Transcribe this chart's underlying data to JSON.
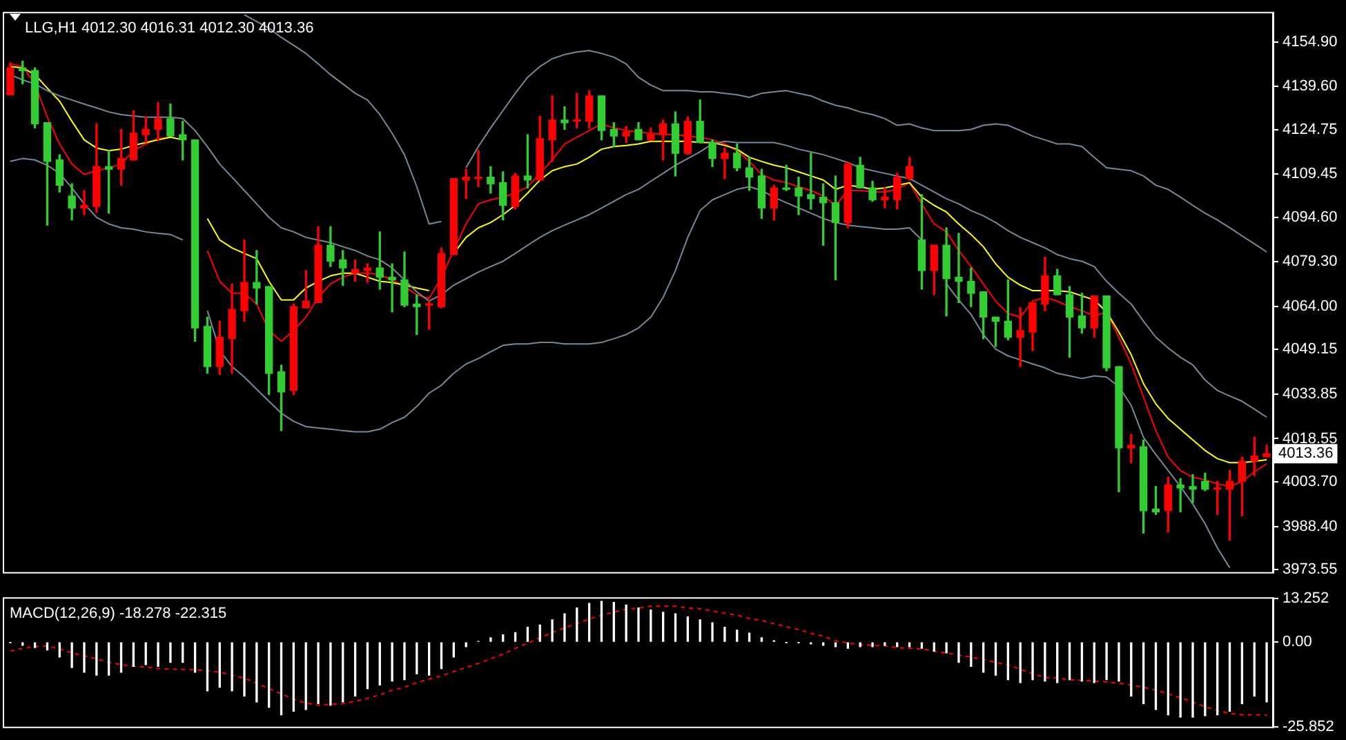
{
  "chart_data": [
    {
      "type": "candlestick",
      "title": "LLG,H1 4012.30 4016.31 4012.30 4013.36",
      "tick_labels": "y",
      "marker": "none",
      "categories": [
        null,
        null,
        null,
        null,
        null,
        null,
        null,
        null,
        null,
        null,
        null,
        null,
        null,
        null,
        null,
        null,
        null,
        null,
        null,
        null,
        null,
        null,
        null,
        null,
        null,
        null,
        null,
        null,
        null,
        null,
        null,
        null,
        null,
        null,
        null,
        null,
        null,
        null,
        null,
        null,
        null,
        null,
        null,
        null,
        null,
        null,
        null,
        null,
        null,
        null,
        null,
        null,
        null,
        null,
        null,
        null,
        null,
        null,
        null,
        null,
        null,
        null,
        null,
        null,
        null,
        null,
        null,
        null,
        null,
        null,
        null,
        null,
        null,
        null,
        null,
        null,
        null,
        null,
        null,
        null,
        null,
        null,
        null,
        null,
        null,
        null,
        null,
        null,
        null,
        null,
        null,
        null,
        null,
        null,
        null,
        null,
        null,
        null,
        null,
        null,
        null,
        null,
        null
      ],
      "ohlc": [
        [
          4136.7,
          4147.7,
          4136.7,
          4145.9
        ],
        [
          4145.9,
          4148.2,
          4140.4,
          4145.0
        ],
        [
          4145.0,
          4145.9,
          4125.3,
          4126.7
        ],
        [
          4127.1,
          4127.1,
          4091.9,
          4113.8
        ],
        [
          4114.3,
          4116.1,
          4103.3,
          4105.6
        ],
        [
          4101.9,
          4106.1,
          4093.7,
          4097.8
        ],
        [
          4097.8,
          4103.8,
          4095.5,
          4098.7
        ],
        [
          4098.3,
          4126.7,
          4096.4,
          4112.0
        ],
        [
          4112.0,
          4117.5,
          4096.0,
          4111.1
        ],
        [
          4111.1,
          4124.8,
          4105.6,
          4114.8
        ],
        [
          4114.3,
          4131.3,
          4114.3,
          4123.5
        ],
        [
          4123.0,
          4129.0,
          4120.3,
          4124.8
        ],
        [
          4124.8,
          4134.0,
          4121.2,
          4128.5
        ],
        [
          4128.5,
          4133.5,
          4122.5,
          4122.5
        ],
        [
          4123.0,
          4127.6,
          4114.3,
          4121.2
        ],
        [
          4121.2,
          4121.2,
          4052.0,
          4056.6
        ],
        [
          4057.1,
          4060.3,
          4041.0,
          4043.3
        ],
        [
          4043.3,
          4058.9,
          4040.6,
          4053.4
        ],
        [
          4052.9,
          4071.7,
          4041.0,
          4063.0
        ],
        [
          4062.5,
          4086.8,
          4058.9,
          4072.2
        ],
        [
          4072.2,
          4083.2,
          4064.8,
          4070.3
        ],
        [
          4070.8,
          4070.8,
          4033.7,
          4041.0
        ],
        [
          4041.5,
          4043.8,
          4021.3,
          4034.6
        ],
        [
          4035.1,
          4064.8,
          4033.7,
          4063.9
        ],
        [
          4063.5,
          4076.3,
          4063.5,
          4065.8
        ],
        [
          4065.3,
          4091.4,
          4065.3,
          4085.0
        ],
        [
          4085.0,
          4091.4,
          4077.7,
          4079.5
        ],
        [
          4080.0,
          4083.2,
          4071.2,
          4077.2
        ],
        [
          4075.4,
          4080.0,
          4072.6,
          4076.7
        ],
        [
          4076.3,
          4078.6,
          4072.2,
          4077.2
        ],
        [
          4077.2,
          4089.6,
          4069.9,
          4074.0
        ],
        [
          4074.0,
          4078.6,
          4062.1,
          4073.1
        ],
        [
          4073.1,
          4082.7,
          4063.9,
          4064.4
        ],
        [
          4064.8,
          4068.0,
          4054.3,
          4063.9
        ],
        [
          4064.4,
          4065.8,
          4056.1,
          4064.8
        ],
        [
          4063.9,
          4084.1,
          4063.5,
          4082.2
        ],
        [
          4081.8,
          4107.9,
          4081.8,
          4107.9
        ],
        [
          4107.4,
          4111.1,
          4101.0,
          4108.4
        ],
        [
          4107.9,
          4117.5,
          4105.1,
          4108.4
        ],
        [
          4108.4,
          4112.0,
          4102.9,
          4106.1
        ],
        [
          4106.5,
          4110.2,
          4093.7,
          4098.7
        ],
        [
          4098.3,
          4109.7,
          4097.4,
          4108.8
        ],
        [
          4108.8,
          4123.0,
          4104.7,
          4107.4
        ],
        [
          4107.4,
          4129.4,
          4107.4,
          4121.6
        ],
        [
          4121.2,
          4136.3,
          4113.8,
          4128.0
        ],
        [
          4128.0,
          4132.6,
          4124.8,
          4127.1
        ],
        [
          4127.6,
          4137.2,
          4125.3,
          4128.0
        ],
        [
          4127.6,
          4138.1,
          4125.3,
          4136.3
        ],
        [
          4136.3,
          4136.3,
          4121.2,
          4124.4
        ],
        [
          4124.8,
          4127.1,
          4118.9,
          4122.5
        ],
        [
          4122.5,
          4125.8,
          4120.3,
          4123.9
        ],
        [
          4124.8,
          4127.1,
          4121.2,
          4121.2
        ],
        [
          4121.2,
          4125.3,
          4121.2,
          4123.0
        ],
        [
          4123.0,
          4128.0,
          4114.3,
          4126.7
        ],
        [
          4126.7,
          4130.8,
          4108.8,
          4116.6
        ],
        [
          4116.6,
          4129.0,
          4116.1,
          4127.6
        ],
        [
          4127.6,
          4134.9,
          4120.3,
          4120.3
        ],
        [
          4120.3,
          4121.2,
          4112.0,
          4114.8
        ],
        [
          4114.8,
          4118.4,
          4107.9,
          4116.6
        ],
        [
          4116.6,
          4119.8,
          4110.6,
          4111.6
        ],
        [
          4111.6,
          4115.2,
          4103.8,
          4108.4
        ],
        [
          4108.8,
          4111.1,
          4094.2,
          4097.8
        ],
        [
          4097.8,
          4105.6,
          4093.7,
          4104.7
        ],
        [
          4104.7,
          4112.5,
          4103.8,
          4104.2
        ],
        [
          4104.7,
          4108.4,
          4095.5,
          4101.9
        ],
        [
          4102.4,
          4116.6,
          4097.4,
          4101.0
        ],
        [
          4101.5,
          4106.1,
          4085.0,
          4099.6
        ],
        [
          4099.6,
          4108.8,
          4073.1,
          4092.8
        ],
        [
          4092.8,
          4113.4,
          4091.0,
          4112.9
        ],
        [
          4112.5,
          4115.2,
          4104.7,
          4104.7
        ],
        [
          4104.7,
          4107.0,
          4100.1,
          4100.6
        ],
        [
          4100.6,
          4104.7,
          4097.8,
          4101.5
        ],
        [
          4100.6,
          4109.7,
          4097.4,
          4108.4
        ],
        [
          4107.9,
          4115.2,
          4107.4,
          4112.0
        ],
        [
          4086.8,
          4102.4,
          4069.9,
          4076.3
        ],
        [
          4076.3,
          4085.0,
          4068.0,
          4085.0
        ],
        [
          4085.0,
          4091.0,
          4060.7,
          4073.5
        ],
        [
          4074.0,
          4089.1,
          4065.3,
          4072.6
        ],
        [
          4072.6,
          4077.2,
          4063.9,
          4068.5
        ],
        [
          4069.0,
          4069.0,
          4052.9,
          4060.3
        ],
        [
          4060.3,
          4060.3,
          4050.2,
          4058.9
        ],
        [
          4058.9,
          4073.1,
          4052.5,
          4053.4
        ],
        [
          4053.4,
          4063.5,
          4043.3,
          4055.7
        ],
        [
          4055.2,
          4065.3,
          4048.8,
          4065.3
        ],
        [
          4064.8,
          4080.9,
          4062.5,
          4074.5
        ],
        [
          4074.5,
          4076.7,
          4068.0,
          4068.0
        ],
        [
          4068.0,
          4070.8,
          4046.5,
          4060.3
        ],
        [
          4060.7,
          4068.5,
          4054.8,
          4056.6
        ],
        [
          4056.6,
          4067.6,
          4053.4,
          4067.6
        ],
        [
          4067.6,
          4067.6,
          4041.9,
          4042.9
        ],
        [
          4043.3,
          4043.3,
          4000.3,
          4015.4
        ],
        [
          4015.4,
          4020.0,
          4010.3,
          4016.3
        ],
        [
          4015.8,
          4018.1,
          3986.1,
          3993.8
        ],
        [
          3994.3,
          4002.1,
          3992.5,
          3993.4
        ],
        [
          3993.8,
          4005.3,
          3986.5,
          4002.6
        ],
        [
          4002.6,
          4004.8,
          3993.4,
          4001.6
        ],
        [
          4002.1,
          4006.2,
          3996.6,
          4001.2
        ],
        [
          4003.9,
          4006.7,
          4000.7,
          4001.2
        ],
        [
          4001.2,
          4003.9,
          3992.5,
          4001.6
        ],
        [
          4001.2,
          4007.6,
          3983.8,
          4003.9
        ],
        [
          4003.9,
          4012.2,
          3992.0,
          4010.8
        ],
        [
          4010.8,
          4019.0,
          4005.8,
          4012.6
        ],
        [
          4012.3,
          4016.31,
          4012.3,
          4013.36
        ]
      ],
      "colors": [
        "#ff0000",
        "#32cd32",
        "#32cd32",
        "#32cd32",
        "#32cd32",
        "#32cd32",
        "#ff0000",
        "#ff0000",
        "#32cd32",
        "#ff0000",
        "#ff0000",
        "#ff0000",
        "#ff0000",
        "#32cd32",
        "#32cd32",
        "#32cd32",
        "#32cd32",
        "#ff0000",
        "#ff0000",
        "#ff0000",
        "#32cd32",
        "#32cd32",
        "#32cd32",
        "#ff0000",
        "#ff0000",
        "#ff0000",
        "#32cd32",
        "#32cd32",
        "#ff0000",
        "#ff0000",
        "#32cd32",
        "#32cd32",
        "#32cd32",
        "#32cd32",
        "#ff0000",
        "#ff0000",
        "#ff0000",
        "#ff0000",
        "#ff0000",
        "#32cd32",
        "#32cd32",
        "#ff0000",
        "#32cd32",
        "#ff0000",
        "#ff0000",
        "#32cd32",
        "#ff0000",
        "#ff0000",
        "#32cd32",
        "#32cd32",
        "#ff0000",
        "#32cd32",
        "#ff0000",
        "#ff0000",
        "#32cd32",
        "#ff0000",
        "#32cd32",
        "#32cd32",
        "#ff0000",
        "#32cd32",
        "#32cd32",
        "#32cd32",
        "#ff0000",
        "#32cd32",
        "#32cd32",
        "#32cd32",
        "#32cd32",
        "#32cd32",
        "#ff0000",
        "#32cd32",
        "#32cd32",
        "#ff0000",
        "#ff0000",
        "#ff0000",
        "#32cd32",
        "#ff0000",
        "#32cd32",
        "#32cd32",
        "#32cd32",
        "#32cd32",
        "#32cd32",
        "#32cd32",
        "#ff0000",
        "#ff0000",
        "#ff0000",
        "#32cd32",
        "#32cd32",
        "#32cd32",
        "#ff0000",
        "#32cd32",
        "#32cd32",
        "#ff0000",
        "#32cd32",
        "#32cd32",
        "#ff0000",
        "#32cd32",
        "#32cd32",
        "#32cd32",
        "#ff0000",
        "#ff0000",
        "#ff0000",
        "#ff0000",
        "#ff0000"
      ],
      "series": [
        {
          "type": "line",
          "color": "#778899",
          "values": [
            null,
            null,
            null,
            null,
            null,
            null,
            null,
            null,
            null,
            null,
            null,
            null,
            null,
            null,
            null,
            null,
            null,
            null,
            null,
            4164.2,
            4161.9,
            4159.6,
            4156.4,
            4153.7,
            4150.9,
            4147.3,
            4143.6,
            4140.4,
            4137.2,
            4134.9,
            4129.9,
            4123.5,
            4116.1,
            4105.1,
            4092.3,
            4093.2,
            null,
            4111.6,
            4118.9,
            4125.3,
            4131.3,
            4137.2,
            4142.7,
            4146.4,
            4149.1,
            4150.5,
            4151.4,
            4151.9,
            4150.9,
            4149.6,
            4147.3,
            4142.7,
            4140.0,
            4138.1,
            4138.1,
            4138.1,
            4137.7,
            4137.7,
            4137.2,
            4136.7,
            4135.8,
            4137.2,
            4137.7,
            4138.1,
            4137.2,
            4136.3,
            4134.5,
            4133.1,
            4132.2,
            4130.8,
            4129.9,
            4128.5,
            4126.2,
            4126.7,
            4125.3,
            4124.4,
            4124.4,
            4124.4,
            4124.8,
            4126.2,
            4126.7,
            4126.2,
            4124.4,
            4122.5,
            4121.2,
            4119.8,
            4119.8,
            4118.9,
            4115.2,
            4111.6,
            4111.1,
            4110.6,
            4108.8,
            4105.6,
            4104.2,
            4101.5,
            4098.7,
            4096.0,
            4093.7,
            4091.0,
            4088.2,
            4085.5,
            4082.7
          ]
        },
        {
          "type": "line",
          "color": "#778899",
          "values": [
            4143.6,
            4141.8,
            4140.4,
            4138.1,
            4136.3,
            4134.9,
            4133.5,
            4132.2,
            4130.8,
            4129.9,
            4129.4,
            4129.0,
            4129.0,
            4129.0,
            4128.5,
            4124.4,
            4118.9,
            4112.9,
            4108.4,
            4103.8,
            4099.2,
            4094.6,
            4091.0,
            4089.6,
            4087.7,
            4086.8,
            4085.9,
            4084.5,
            4083.2,
            4081.3,
            4080.0,
            4077.2,
            4073.1,
            4069.0,
            4065.8,
            4068.0,
            4071.3,
            4073.5,
            4075.8,
            4077.7,
            4079.5,
            4082.2,
            4085.0,
            4087.7,
            4090.0,
            4091.9,
            4093.7,
            4095.5,
            4097.8,
            4100.1,
            4102.4,
            4104.2,
            4107.0,
            4109.7,
            4112.5,
            4114.8,
            4117.1,
            4119.8,
            4120.7,
            4120.3,
            4120.3,
            4120.3,
            4120.3,
            4119.3,
            4118.0,
            4117.1,
            4116.1,
            4114.8,
            4113.4,
            4111.6,
            4110.6,
            4109.7,
            4108.8,
            4107.9,
            4105.6,
            4103.3,
            4101.0,
            4099.2,
            4096.9,
            4095.1,
            4092.8,
            4090.0,
            4087.7,
            4085.9,
            4084.1,
            4081.8,
            4080.4,
            4079.5,
            4077.7,
            4072.6,
            4068.5,
            4064.8,
            4058.9,
            4053.4,
            4049.7,
            4046.5,
            4043.9,
            4038.7,
            4035.1,
            4033.2,
            4031.4,
            4028.7,
            4025.9
          ]
        },
        {
          "type": "line",
          "color": "#778899",
          "values": [
            4113.8,
            4114.8,
            4114.3,
            4112.5,
            4109.7,
            4104.7,
            4099.2,
            4094.6,
            4092.3,
            4091.0,
            4090.5,
            4089.6,
            4089.1,
            4088.7,
            4086.8,
            null,
            4062.5,
            4048.8,
            4043.3,
            4039.7,
            4035.5,
            4031.4,
            4027.3,
            4024.5,
            4022.7,
            4022.2,
            4021.8,
            4021.3,
            4020.9,
            4020.9,
            4021.8,
            4024.1,
            4025.9,
            4029.6,
            4034.2,
            4036.9,
            4041.0,
            4044.2,
            4046.1,
            4048.4,
            4050.6,
            4051.1,
            4051.1,
            4051.6,
            4051.6,
            4051.1,
            4051.1,
            4051.1,
            4051.6,
            4052.9,
            4054.3,
            4056.6,
            4060.3,
            4067.1,
            4076.3,
            4087.7,
            4096.9,
            4100.6,
            4102.4,
            4104.2,
            4105.1,
            4103.8,
            4101.5,
            4099.6,
            4097.8,
            4096.0,
            4094.2,
            4092.8,
            4091.9,
            4091.4,
            4091.0,
            4090.5,
            4090.5,
            4091.0,
            4086.8,
            null,
            4071.7,
            4066.2,
            4061.2,
            4054.3,
            4049.3,
            4047.0,
            4045.6,
            4044.2,
            4042.9,
            4041.0,
            4040.1,
            4039.2,
            4040.1,
            4039.7,
            4036.4,
            4030.0,
            4019.0,
            4013.1,
            4007.6,
            4002.1,
            3996.1,
            3989.3,
            3981.0,
            3974.2,
            null,
            null,
            null
          ]
        },
        {
          "type": "line",
          "color": "#ffff00",
          "values": [
            4146.4,
            4145.9,
            4143.6,
            4139.0,
            4134.5,
            4127.6,
            4121.2,
            4118.4,
            4117.5,
            4118.0,
            4119.3,
            4120.3,
            4121.2,
            4122.1,
            4121.2,
            null,
            4094.2,
            4086.8,
            4084.1,
            4082.2,
            4080.4,
            4072.6,
            4066.2,
            4066.2,
            4070.3,
            4072.6,
            4074.5,
            4075.4,
            4075.4,
            4074.0,
            4072.6,
            4072.2,
            4071.3,
            4070.3,
            4069.4,
            null,
            4082.2,
            4087.7,
            4091.0,
            4092.8,
            4095.5,
            4098.7,
            4102.9,
            4107.4,
            4110.6,
            4112.0,
            4112.9,
            4115.2,
            4118.0,
            4118.9,
            4119.3,
            4119.8,
            4120.7,
            4120.7,
            4120.7,
            4120.7,
            4120.3,
            4120.3,
            4119.3,
            4118.0,
            4115.2,
            4113.8,
            4112.5,
            4111.6,
            4110.2,
            4108.8,
            4107.4,
            4104.2,
            4105.6,
            4105.1,
            4104.2,
            4104.7,
            4105.6,
            4106.5,
            4101.5,
            4098.7,
            4096.4,
            4092.3,
            4088.7,
            4084.5,
            4078.6,
            4074.0,
            4071.3,
            4069.4,
            4069.4,
            4069.4,
            4069.0,
            4067.6,
            4066.2,
            4062.1,
            4055.2,
            4047.4,
            4037.4,
            4030.5,
            4025.5,
            4021.8,
            4018.1,
            4014.5,
            4011.7,
            4010.3,
            4010.3,
            4010.8,
            4011.3
          ]
        },
        {
          "type": "line",
          "color": "#ff0000",
          "values": [
            4147.3,
            4146.4,
            4140.4,
            4129.0,
            4119.8,
            4112.9,
            4109.3,
            4110.6,
            4111.6,
            4112.9,
            4117.5,
            4119.8,
            4121.6,
            4122.1,
            null,
            null,
            4083.2,
            4072.6,
            4068.5,
            4068.5,
            4064.8,
            4055.7,
            4052.0,
            4055.7,
            4060.3,
            4067.1,
            4071.7,
            4074.0,
            4075.4,
            4075.4,
            4074.9,
            4073.1,
            4070.8,
            4068.0,
            4066.7,
            4074.0,
            4083.2,
            4092.3,
            4099.2,
            4100.6,
            4101.5,
            4102.9,
            4105.1,
            4109.7,
            4114.3,
            4119.8,
            4122.1,
            4124.4,
            4126.7,
            4125.3,
            4124.4,
            4123.9,
            4123.5,
            4123.0,
            4123.0,
            4122.5,
            4122.1,
            4121.2,
            4119.8,
            4117.5,
            4113.8,
            4109.3,
            4107.4,
            4106.5,
            4105.1,
            4103.8,
            4101.9,
            4098.7,
            4103.8,
            4103.8,
            4103.3,
            4103.3,
            4104.2,
            4106.5,
            4099.2,
            4092.3,
            4089.6,
            4083.2,
            4077.7,
            4071.7,
            4065.8,
            4061.6,
            4060.3,
            4065.8,
            4067.1,
            4065.8,
            4063.9,
            4062.5,
            4060.7,
            4062.1,
            4053.4,
            4044.2,
            4032.8,
            4021.3,
            4012.2,
            4007.6,
            4005.3,
            4004.4,
            4003.0,
            4002.1,
            4003.9,
            4007.1,
            4009.9
          ]
        }
      ],
      "ylim": [
        3972.7,
        4164.7
      ],
      "yticks": [
        {
          "value": 3973.55,
          "label": "3973.55"
        },
        {
          "value": 3988.4,
          "label": "3988.40"
        },
        {
          "value": 4003.7,
          "label": "4003.70"
        },
        {
          "value": 4018.55,
          "label": "4018.55"
        },
        {
          "value": 4033.85,
          "label": "4033.85"
        },
        {
          "value": 4049.15,
          "label": "4049.15"
        },
        {
          "value": 4064.0,
          "label": "4064.00"
        },
        {
          "value": 4079.3,
          "label": "4079.30"
        },
        {
          "value": 4094.6,
          "label": "4094.60"
        },
        {
          "value": 4109.45,
          "label": "4109.45"
        },
        {
          "value": 4124.75,
          "label": "4124.75"
        },
        {
          "value": 4139.6,
          "label": "4139.60"
        },
        {
          "value": 4154.9,
          "label": "4154.90"
        }
      ],
      "annotations": [
        "4013.36"
      ]
    },
    {
      "type": "bar",
      "title": "MACD(12,26,9) -18.278 -22.315",
      "tick_labels": "y",
      "marker": "none",
      "categories": [
        null,
        null,
        null,
        null,
        null,
        null,
        null,
        null,
        null,
        null,
        null,
        null,
        null,
        null,
        null,
        null,
        null,
        null,
        null,
        null,
        null,
        null,
        null,
        null,
        null,
        null,
        null,
        null,
        null,
        null,
        null,
        null,
        null,
        null,
        null,
        null,
        null,
        null,
        null,
        null,
        null,
        null,
        null,
        null,
        null,
        null,
        null,
        null,
        null,
        null,
        null,
        null,
        null,
        null,
        null,
        null,
        null,
        null,
        null,
        null,
        null,
        null,
        null,
        null,
        null,
        null,
        null,
        null,
        null,
        null,
        null,
        null,
        null,
        null,
        null,
        null,
        null,
        null,
        null,
        null,
        null,
        null,
        null,
        null,
        null,
        null,
        null,
        null,
        null,
        null,
        null,
        null,
        null,
        null,
        null,
        null,
        null,
        null,
        null,
        null,
        null,
        null,
        null
      ],
      "series": [
        {
          "color": "#ffffff",
          "values": [
            -0.1,
            -1.0,
            -1.7,
            -2.4,
            -4.6,
            -7.8,
            -9.2,
            -10.1,
            -10.1,
            -9.2,
            -7.4,
            -6.9,
            -7.4,
            -6.2,
            -6.2,
            -9.2,
            -14.9,
            -13.8,
            -14.9,
            -16.5,
            -18.3,
            -19.9,
            -22.2,
            -21.1,
            -20.6,
            -18.8,
            -19.3,
            -18.3,
            -16.5,
            -14.2,
            -13.1,
            -11.9,
            -11.5,
            -9.7,
            -10.1,
            -8.1,
            -4.6,
            -1.4,
            0.2,
            1.3,
            2.2,
            2.9,
            4.5,
            5.2,
            6.8,
            8.6,
            10.4,
            11.8,
            12.4,
            12.1,
            11.3,
            10.4,
            9.8,
            9.1,
            8.6,
            7.7,
            6.8,
            5.9,
            4.5,
            3.6,
            2.7,
            1.3,
            0.4,
            -0.1,
            -0.1,
            -0.5,
            -1.0,
            -1.4,
            -1.9,
            -1.4,
            -1.4,
            -1.0,
            -1.4,
            -1.4,
            -1.9,
            -2.8,
            -3.3,
            -6.2,
            -7.4,
            -9.2,
            -10.1,
            -11.5,
            -12.4,
            -11.5,
            -11.9,
            -12.4,
            -11.5,
            -11.9,
            -12.4,
            -11.5,
            -11.9,
            -16.5,
            -18.8,
            -20.6,
            -22.2,
            -22.9,
            -22.9,
            -22.5,
            -22.2,
            -21.1,
            -18.8,
            -16.5,
            -18.3
          ]
        },
        {
          "type": "line",
          "color": "#ff0000",
          "line_style": "dashed",
          "values": [
            -2.8,
            -1.9,
            -1.4,
            -1.2,
            -2.1,
            -3.3,
            -4.2,
            -5.1,
            -6.2,
            -6.9,
            -7.4,
            -7.6,
            -8.1,
            -8.3,
            -8.3,
            -8.5,
            -8.7,
            -9.2,
            -10.1,
            -11.0,
            -12.6,
            -14.2,
            -15.8,
            -17.4,
            -18.6,
            -19.3,
            -19.0,
            -18.8,
            -18.1,
            -17.2,
            -16.1,
            -14.7,
            -13.8,
            -12.4,
            -11.3,
            -10.3,
            -9.0,
            -7.8,
            -6.5,
            -5.1,
            -3.7,
            -1.9,
            -0.3,
            1.3,
            2.9,
            4.3,
            5.6,
            7.0,
            8.2,
            9.1,
            10.0,
            10.4,
            10.9,
            10.9,
            10.9,
            10.4,
            10.2,
            9.5,
            8.8,
            8.2,
            7.2,
            6.6,
            5.6,
            4.7,
            3.8,
            2.7,
            1.8,
            0.4,
            -0.3,
            -0.8,
            -1.0,
            -1.2,
            -1.7,
            -1.9,
            -2.1,
            -2.8,
            -3.3,
            -4.0,
            -4.6,
            -5.3,
            -6.2,
            -6.9,
            -8.3,
            -9.7,
            -10.8,
            -11.0,
            -11.5,
            -11.7,
            -11.9,
            -12.2,
            -12.6,
            -13.1,
            -13.8,
            -14.7,
            -15.8,
            -17.0,
            -18.3,
            -19.7,
            -20.9,
            -21.8,
            -22.2,
            -22.2,
            -22.3
          ]
        }
      ],
      "ylim": [
        -25.852,
        13.252
      ],
      "yticks": [
        {
          "value": -25.852,
          "label": "-25.852"
        },
        {
          "value": 0,
          "label": "0.00"
        },
        {
          "value": 13.252,
          "label": "13.252"
        }
      ]
    }
  ]
}
